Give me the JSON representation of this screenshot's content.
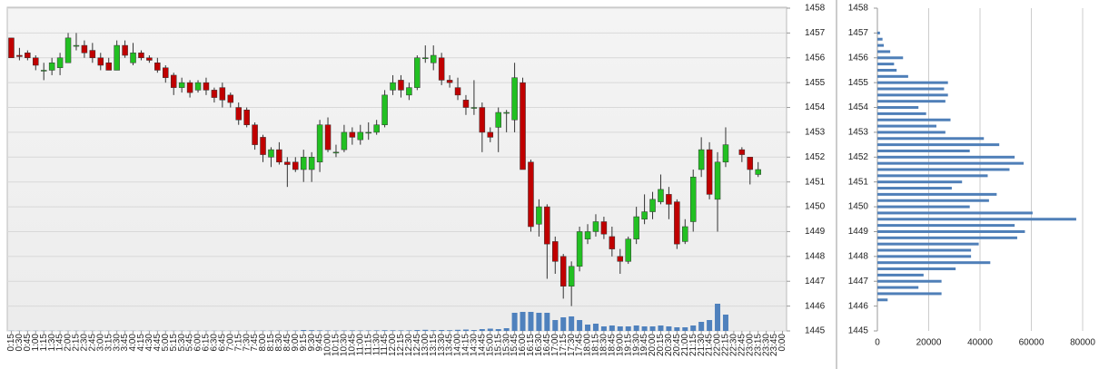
{
  "chart_data": [
    {
      "type": "candlestick",
      "categories": [
        "0:15",
        "0:30",
        "0:45",
        "1:00",
        "1:15",
        "1:30",
        "1:45",
        "2:00",
        "2:15",
        "2:30",
        "2:45",
        "3:00",
        "3:15",
        "3:30",
        "3:45",
        "4:00",
        "4:15",
        "4:30",
        "4:45",
        "5:00",
        "5:15",
        "5:30",
        "5:45",
        "6:00",
        "6:15",
        "6:30",
        "6:45",
        "7:00",
        "7:15",
        "7:30",
        "7:45",
        "8:00",
        "8:15",
        "8:30",
        "8:45",
        "9:00",
        "9:15",
        "9:30",
        "9:45",
        "10:00",
        "10:15",
        "10:30",
        "10:45",
        "11:00",
        "11:15",
        "11:30",
        "11:45",
        "12:00",
        "12:15",
        "12:30",
        "12:45",
        "13:00",
        "13:15",
        "13:30",
        "13:45",
        "14:00",
        "14:15",
        "14:30",
        "14:45",
        "15:00",
        "15:15",
        "15:30",
        "15:45",
        "16:00",
        "16:15",
        "16:30",
        "16:45",
        "17:00",
        "17:15",
        "17:30",
        "17:45",
        "18:00",
        "18:15",
        "18:30",
        "18:45",
        "19:00",
        "19:15",
        "19:30",
        "19:45",
        "20:00",
        "20:15",
        "20:30",
        "20:45",
        "21:00",
        "21:15",
        "21:30",
        "21:45",
        "22:00",
        "22:15",
        "22:30",
        "22:45",
        "23:00",
        "23:15",
        "23:30",
        "23:45",
        "0:00"
      ],
      "open": [
        1456.8,
        1456.1,
        1456.2,
        1456.0,
        1455.5,
        1455.5,
        1455.6,
        1455.8,
        1456.5,
        1456.5,
        1456.3,
        1456.0,
        1455.8,
        1455.5,
        1456.5,
        1455.8,
        1456.2,
        1456.0,
        1455.8,
        1455.6,
        1455.3,
        1454.8,
        1455.0,
        1454.7,
        1455.0,
        1454.7,
        1454.8,
        1454.5,
        1454.0,
        1453.9,
        1453.3,
        1452.8,
        1452.0,
        1452.3,
        1451.8,
        1451.8,
        1451.5,
        1451.5,
        1451.8,
        1453.3,
        1452.2,
        1452.3,
        1453.0,
        1452.7,
        1453.0,
        1453.0,
        1453.3,
        1454.7,
        1455.1,
        1454.5,
        1454.8,
        1456.0,
        1455.8,
        1456.0,
        1455.1,
        1454.8,
        1454.3,
        1454.0,
        1454.0,
        1453.0,
        1453.2,
        1453.8,
        1453.5,
        1455.0,
        1451.8,
        1449.3,
        1450.0,
        1448.6,
        1448.0,
        1446.8,
        1447.6,
        1448.7,
        1449.0,
        1449.4,
        1448.8,
        1448.0,
        1447.8,
        1448.7,
        1449.5,
        1449.8,
        1450.2,
        1450.5,
        1450.2,
        1448.6,
        1449.4,
        1451.5,
        1452.3,
        1450.3,
        1451.8,
        null,
        1452.3,
        1452.0,
        1451.3,
        null,
        null,
        null
      ],
      "high": [
        1456.8,
        1456.4,
        1456.3,
        1456.1,
        1455.8,
        1456.0,
        1456.2,
        1457.0,
        1457.0,
        1456.7,
        1456.6,
        1456.2,
        1456.0,
        1456.7,
        1456.7,
        1456.6,
        1456.3,
        1456.1,
        1456.0,
        1455.7,
        1455.4,
        1455.2,
        1455.1,
        1455.1,
        1455.2,
        1454.8,
        1455.0,
        1454.6,
        1454.2,
        1454.0,
        1453.4,
        1452.9,
        1452.4,
        1452.6,
        1452.0,
        1452.0,
        1452.3,
        1452.2,
        1453.5,
        1453.6,
        1452.5,
        1453.3,
        1453.2,
        1453.3,
        1453.4,
        1453.5,
        1454.7,
        1455.3,
        1455.3,
        1455.0,
        1456.1,
        1456.5,
        1456.5,
        1456.2,
        1455.3,
        1455.2,
        1454.5,
        1455.1,
        1454.2,
        1453.2,
        1454.0,
        1453.9,
        1455.8,
        1455.2,
        1451.9,
        1450.3,
        1450.1,
        1448.8,
        1448.1,
        1447.8,
        1449.2,
        1449.3,
        1449.7,
        1449.6,
        1449.2,
        1448.3,
        1448.8,
        1450.0,
        1450.5,
        1450.6,
        1451.3,
        1450.8,
        1450.3,
        1449.5,
        1451.5,
        1452.8,
        1452.6,
        1452.2,
        1453.2,
        null,
        1452.4,
        1452.0,
        1451.8,
        null,
        null,
        null
      ],
      "low": [
        1456.0,
        1455.9,
        1455.9,
        1455.5,
        1455.1,
        1455.3,
        1455.3,
        1455.8,
        1456.3,
        1456.0,
        1455.8,
        1455.5,
        1455.5,
        1455.5,
        1456.0,
        1455.7,
        1455.9,
        1455.8,
        1455.4,
        1455.0,
        1454.5,
        1454.6,
        1454.4,
        1454.6,
        1454.5,
        1454.2,
        1454.0,
        1454.0,
        1453.3,
        1453.2,
        1452.3,
        1451.8,
        1451.6,
        1451.7,
        1450.8,
        1451.4,
        1451.0,
        1451.0,
        1451.4,
        1452.2,
        1452.0,
        1452.2,
        1452.5,
        1452.5,
        1452.7,
        1452.9,
        1453.2,
        1454.5,
        1454.4,
        1454.3,
        1454.7,
        1455.8,
        1455.5,
        1454.9,
        1454.8,
        1454.3,
        1453.7,
        1453.7,
        1452.2,
        1452.6,
        1452.2,
        1453.0,
        1453.0,
        1451.5,
        1449.0,
        1448.8,
        1447.1,
        1447.3,
        1446.3,
        1446.0,
        1447.4,
        1448.5,
        1448.8,
        1448.7,
        1448.0,
        1447.3,
        1447.7,
        1448.5,
        1449.3,
        1449.5,
        1450.1,
        1449.5,
        1448.3,
        1448.5,
        1449.0,
        1451.2,
        1450.3,
        1449.0,
        1451.6,
        null,
        1451.8,
        1450.9,
        1451.2,
        null,
        null,
        null
      ],
      "close": [
        1456.0,
        1456.05,
        1456.0,
        1455.7,
        1455.5,
        1455.8,
        1456.0,
        1456.8,
        1456.5,
        1456.2,
        1456.0,
        1455.7,
        1455.5,
        1456.5,
        1456.1,
        1456.2,
        1456.0,
        1455.9,
        1455.5,
        1455.2,
        1454.8,
        1455.0,
        1454.6,
        1455.0,
        1454.7,
        1454.4,
        1454.3,
        1454.2,
        1453.5,
        1453.3,
        1452.5,
        1452.1,
        1452.3,
        1451.8,
        1451.7,
        1451.5,
        1452.0,
        1452.0,
        1453.3,
        1452.3,
        1452.2,
        1453.0,
        1452.8,
        1453.0,
        1453.0,
        1453.3,
        1454.5,
        1455.0,
        1454.7,
        1454.8,
        1456.0,
        1456.0,
        1456.1,
        1455.1,
        1455.0,
        1454.5,
        1454.0,
        1454.0,
        1453.0,
        1452.8,
        1453.8,
        1453.8,
        1455.2,
        1451.5,
        1449.2,
        1450.0,
        1448.5,
        1447.8,
        1446.8,
        1447.6,
        1449.0,
        1449.0,
        1449.4,
        1448.9,
        1448.3,
        1447.8,
        1448.7,
        1449.6,
        1449.8,
        1450.3,
        1450.7,
        1450.1,
        1448.5,
        1449.2,
        1451.2,
        1452.3,
        1450.5,
        1451.8,
        1452.5,
        null,
        1452.1,
        1451.5,
        1451.5,
        null,
        null,
        null
      ],
      "volume": [
        0.2,
        0.2,
        0.2,
        0.2,
        0.2,
        0.2,
        0.2,
        0.2,
        0.2,
        0.2,
        0.2,
        0.2,
        0.2,
        0.2,
        0.2,
        0.2,
        0.2,
        0.2,
        0.2,
        0.2,
        0.2,
        0.2,
        0.2,
        0.2,
        0.2,
        0.2,
        0.2,
        0.2,
        0.2,
        0.2,
        0.2,
        0.3,
        0.3,
        0.3,
        0.3,
        0.4,
        1,
        0.8,
        0.6,
        0.5,
        0.4,
        0.5,
        0.6,
        0.5,
        0.5,
        0.6,
        0.8,
        0.7,
        0.6,
        0.6,
        1,
        1.2,
        0.8,
        1,
        0.8,
        1.2,
        1.5,
        1,
        2,
        2.5,
        2,
        3,
        20,
        21,
        21,
        20,
        20,
        12,
        15,
        16,
        12,
        7,
        8,
        5,
        6,
        5,
        5,
        6,
        5,
        5,
        6,
        5,
        4,
        4,
        6,
        10,
        12,
        30,
        18,
        null,
        null,
        null,
        null,
        null,
        null,
        null
      ],
      "up_color": "#22c022",
      "down_color": "#c00000",
      "volume_color": "#4f81bd",
      "ylim": [
        1445,
        1458
      ],
      "yticks": [
        1445,
        1446,
        1447,
        1448,
        1449,
        1450,
        1451,
        1452,
        1453,
        1454,
        1455,
        1456,
        1457,
        1458
      ],
      "grid": true
    },
    {
      "type": "hbar",
      "categories": [
        1457,
        1456.75,
        1456.5,
        1456.25,
        1456,
        1455.75,
        1455.5,
        1455.25,
        1455,
        1454.75,
        1454.5,
        1454.25,
        1454,
        1453.75,
        1453.5,
        1453.25,
        1453,
        1452.75,
        1452.5,
        1452.25,
        1452,
        1451.75,
        1451.5,
        1451.25,
        1451,
        1450.75,
        1450.5,
        1450.25,
        1450,
        1449.75,
        1449.5,
        1449.25,
        1449,
        1448.75,
        1448.5,
        1448.25,
        1448,
        1447.75,
        1447.5,
        1447.25,
        1447,
        1446.75,
        1446.5,
        1446.25
      ],
      "values": [
        1000,
        2000,
        2500,
        5000,
        10000,
        6500,
        7500,
        12000,
        27500,
        26000,
        27500,
        26500,
        16000,
        19000,
        28500,
        23000,
        26500,
        41500,
        47500,
        36000,
        53500,
        57000,
        51500,
        43000,
        33000,
        29000,
        46500,
        43500,
        36000,
        60500,
        77500,
        53500,
        57500,
        54500,
        39500,
        36500,
        36500,
        44000,
        30500,
        18000,
        25000,
        16000,
        25000,
        4000
      ],
      "color": "#4f7fb8",
      "ylim": [
        1445,
        1458
      ],
      "yticks": [
        1445,
        1446,
        1447,
        1448,
        1449,
        1450,
        1451,
        1452,
        1453,
        1454,
        1455,
        1456,
        1457,
        1458
      ],
      "xlim": [
        0,
        80000
      ],
      "xticks": [
        0,
        20000,
        40000,
        60000,
        80000
      ],
      "grid": true
    }
  ]
}
